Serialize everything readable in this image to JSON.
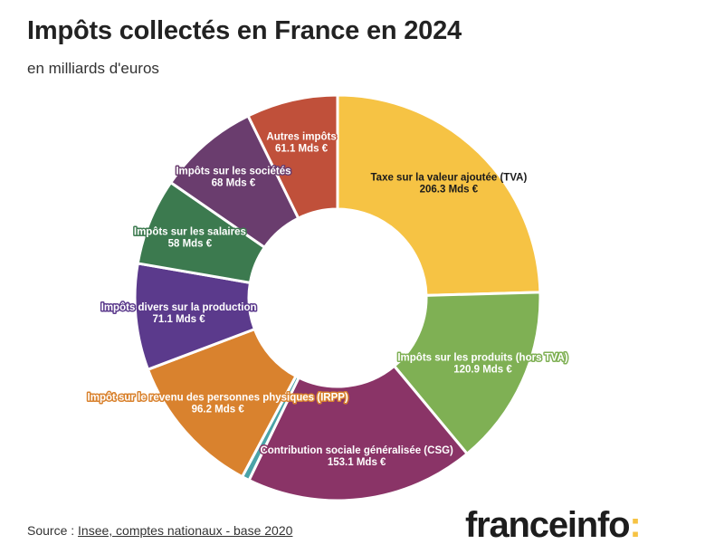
{
  "title": "Impôts collectés en France en 2024",
  "subtitle": "en milliards d'euros",
  "source": {
    "prefix": "Source : ",
    "link": "Insee, comptes nationaux - base 2020"
  },
  "logo": {
    "name": "franceinfo",
    "colon": ":"
  },
  "chart_data": {
    "type": "pie",
    "title": "Impôts collectés en France en 2024",
    "subtitle": "en milliards d'euros",
    "unit": "Mds €",
    "slices": [
      {
        "name": "Taxe sur la valeur ajoutée (TVA)",
        "value": 206.3,
        "display": "206.3 Mds €",
        "color": "#f6c344",
        "label_color": "#1a1a1a"
      },
      {
        "name": "Impôts sur les produits (hors TVA)",
        "value": 120.9,
        "display": "120.9 Mds €",
        "color": "#7fb054",
        "label_color": "#ffffff"
      },
      {
        "name": "Contribution sociale généralisée (CSG)",
        "value": 153.1,
        "display": "153.1 Mds €",
        "color": "#8a3467",
        "label_color": "#ffffff"
      },
      {
        "name": "",
        "value": 5,
        "display": "",
        "color": "#4aa3a8",
        "label_color": "#ffffff"
      },
      {
        "name": "Impôt sur le revenu des personnes physiques (IRPP)",
        "value": 96.2,
        "display": "96.2 Mds €",
        "color": "#d9822e",
        "label_color": "#ffffff"
      },
      {
        "name": "Impôts divers sur la production",
        "value": 71.1,
        "display": "71.1 Mds €",
        "color": "#5b3a8c",
        "label_color": "#ffffff"
      },
      {
        "name": "Impôts sur les salaires",
        "value": 58,
        "display": "58 Mds €",
        "color": "#3c7a4f",
        "label_color": "#ffffff"
      },
      {
        "name": "Impôts sur les sociétés",
        "value": 68,
        "display": "68 Mds €",
        "color": "#6a3d6e",
        "label_color": "#ffffff"
      },
      {
        "name": "Autres impôts",
        "value": 61.1,
        "display": "61.1 Mds €",
        "color": "#c0503a",
        "label_color": "#ffffff"
      }
    ]
  }
}
